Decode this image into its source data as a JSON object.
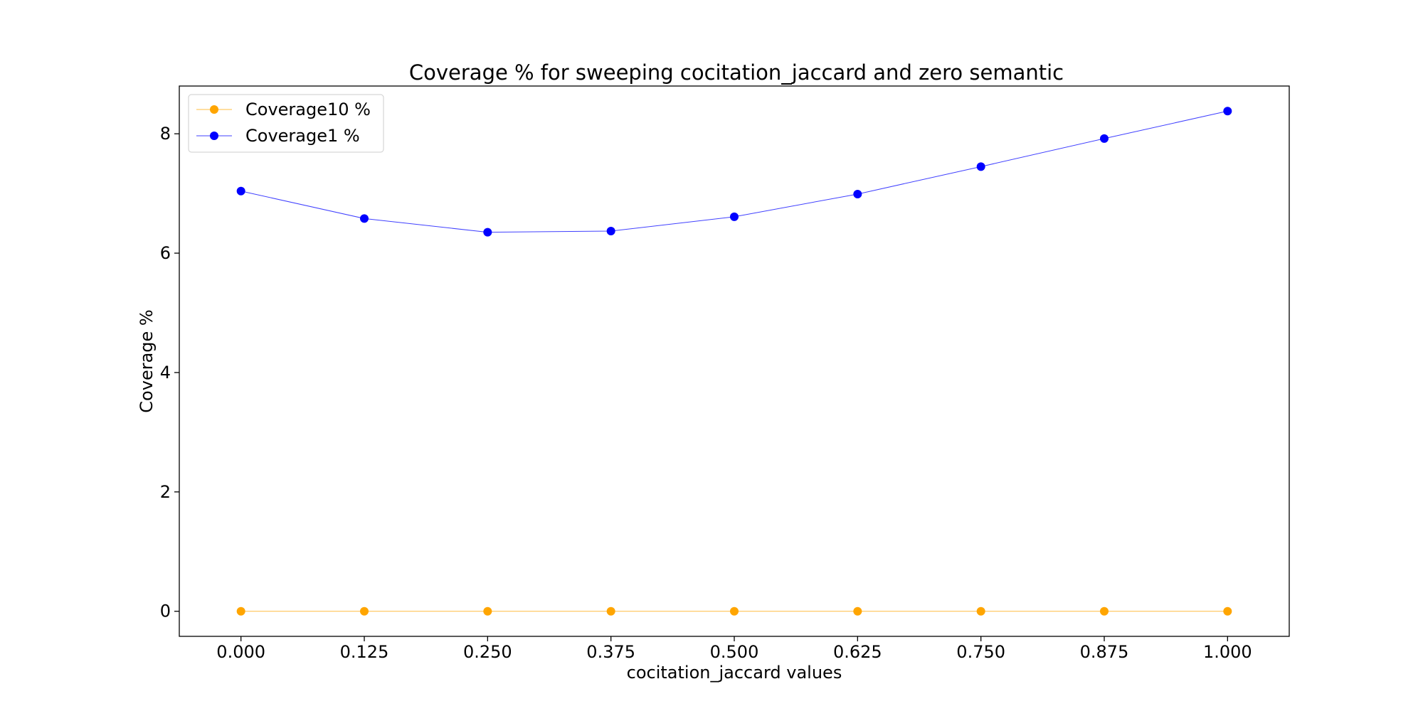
{
  "chart_data": {
    "type": "line",
    "title": "Coverage % for sweeping cocitation_jaccard and zero semantic",
    "xlabel": "cocitation_jaccard values",
    "ylabel": "Coverage %",
    "x": [
      0.0,
      0.125,
      0.25,
      0.375,
      0.5,
      0.625,
      0.75,
      0.875,
      1.0
    ],
    "x_tick_labels": [
      "0.000",
      "0.125",
      "0.250",
      "0.375",
      "0.500",
      "0.625",
      "0.750",
      "0.875",
      "1.000"
    ],
    "y_ticks": [
      0,
      2,
      4,
      6,
      8
    ],
    "y_tick_labels": [
      "0",
      "2",
      "4",
      "6",
      "8"
    ],
    "xlim": [
      -0.0625,
      1.0625
    ],
    "ylim": [
      -0.42,
      8.8
    ],
    "grid": false,
    "legend_position": "upper left",
    "series": [
      {
        "name": "Coverage10 %",
        "color": "#FFA500",
        "marker": "circle",
        "values": [
          0,
          0,
          0,
          0,
          0,
          0,
          0,
          0,
          0
        ]
      },
      {
        "name": "Coverage1 %",
        "color": "#0000FF",
        "marker": "circle",
        "values": [
          7.04,
          6.58,
          6.35,
          6.37,
          6.61,
          6.99,
          7.45,
          7.92,
          8.38
        ]
      }
    ]
  }
}
